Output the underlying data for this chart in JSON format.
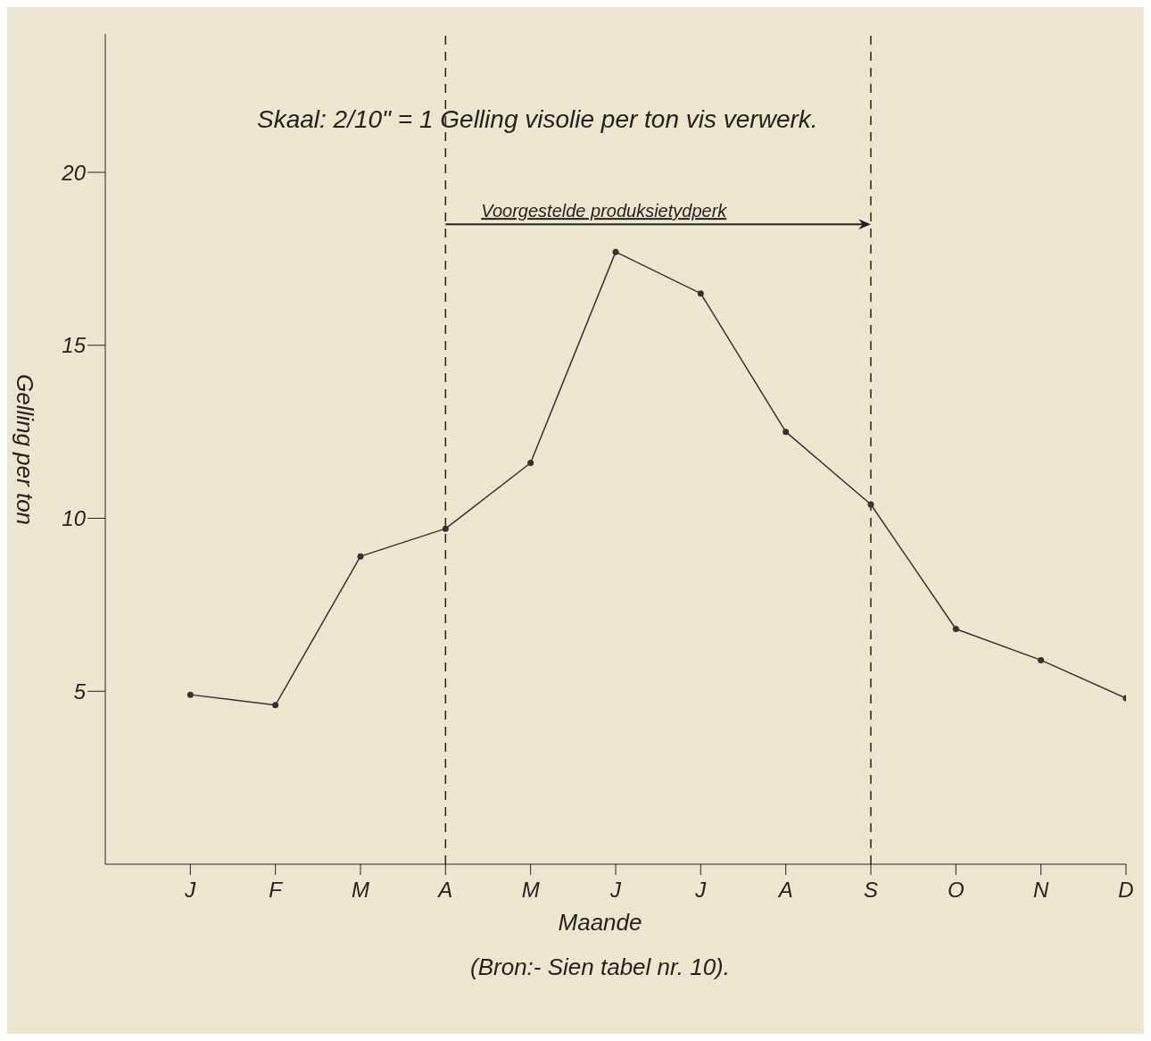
{
  "chart_data": {
    "type": "line",
    "title": "Skaal: 2/10\" = 1 Gelling visolie per ton vis verwerk.",
    "xlabel": "Maande",
    "ylabel": "Gelling per ton",
    "categories": [
      "J",
      "F",
      "M",
      "A",
      "M",
      "J",
      "J",
      "A",
      "S",
      "O",
      "N",
      "D"
    ],
    "series": [
      {
        "color": "#333333",
        "values": [
          4.9,
          4.6,
          8.9,
          9.7,
          11.6,
          17.7,
          16.5,
          12.5,
          10.4,
          6.8,
          5.9,
          4.8
        ]
      }
    ],
    "ylim": [
      0,
      24
    ],
    "yticks": [
      5,
      10,
      15,
      20
    ],
    "grid": false,
    "legend": false,
    "marker": "circle",
    "line_style": "solid",
    "ref_lines": [
      {
        "axis": "x",
        "value": "A",
        "color": "#222222",
        "line_style": "dashed"
      },
      {
        "axis": "x",
        "value": "S",
        "color": "#222222",
        "line_style": "dashed"
      }
    ],
    "annotations": [
      "Voorgestelde produksietydperk",
      "(Bron:- Sien tabel nr. 10)."
    ]
  }
}
